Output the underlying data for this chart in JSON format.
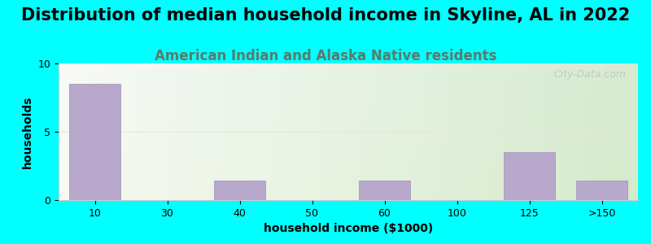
{
  "title": "Distribution of median household income in Skyline, AL in 2022",
  "subtitle": "American Indian and Alaska Native residents",
  "xlabel": "household income ($1000)",
  "ylabel": "households",
  "categories": [
    "10",
    "30",
    "40",
    "50",
    "60",
    "100",
    "125",
    ">150"
  ],
  "values": [
    8.5,
    0,
    1.4,
    0,
    1.4,
    0,
    3.5,
    1.4
  ],
  "bar_color": "#b8a8cc",
  "bar_edge_color": "#a090b8",
  "ylim": [
    0,
    10
  ],
  "yticks": [
    0,
    5,
    10
  ],
  "background_color": "#00FFFF",
  "title_fontsize": 15,
  "subtitle_fontsize": 12,
  "subtitle_color": "#5a7a6a",
  "axis_label_fontsize": 10,
  "tick_fontsize": 9,
  "watermark_text": "City-Data.com",
  "watermark_color": "#b8c8c0",
  "grid_color": "#e0ead8"
}
